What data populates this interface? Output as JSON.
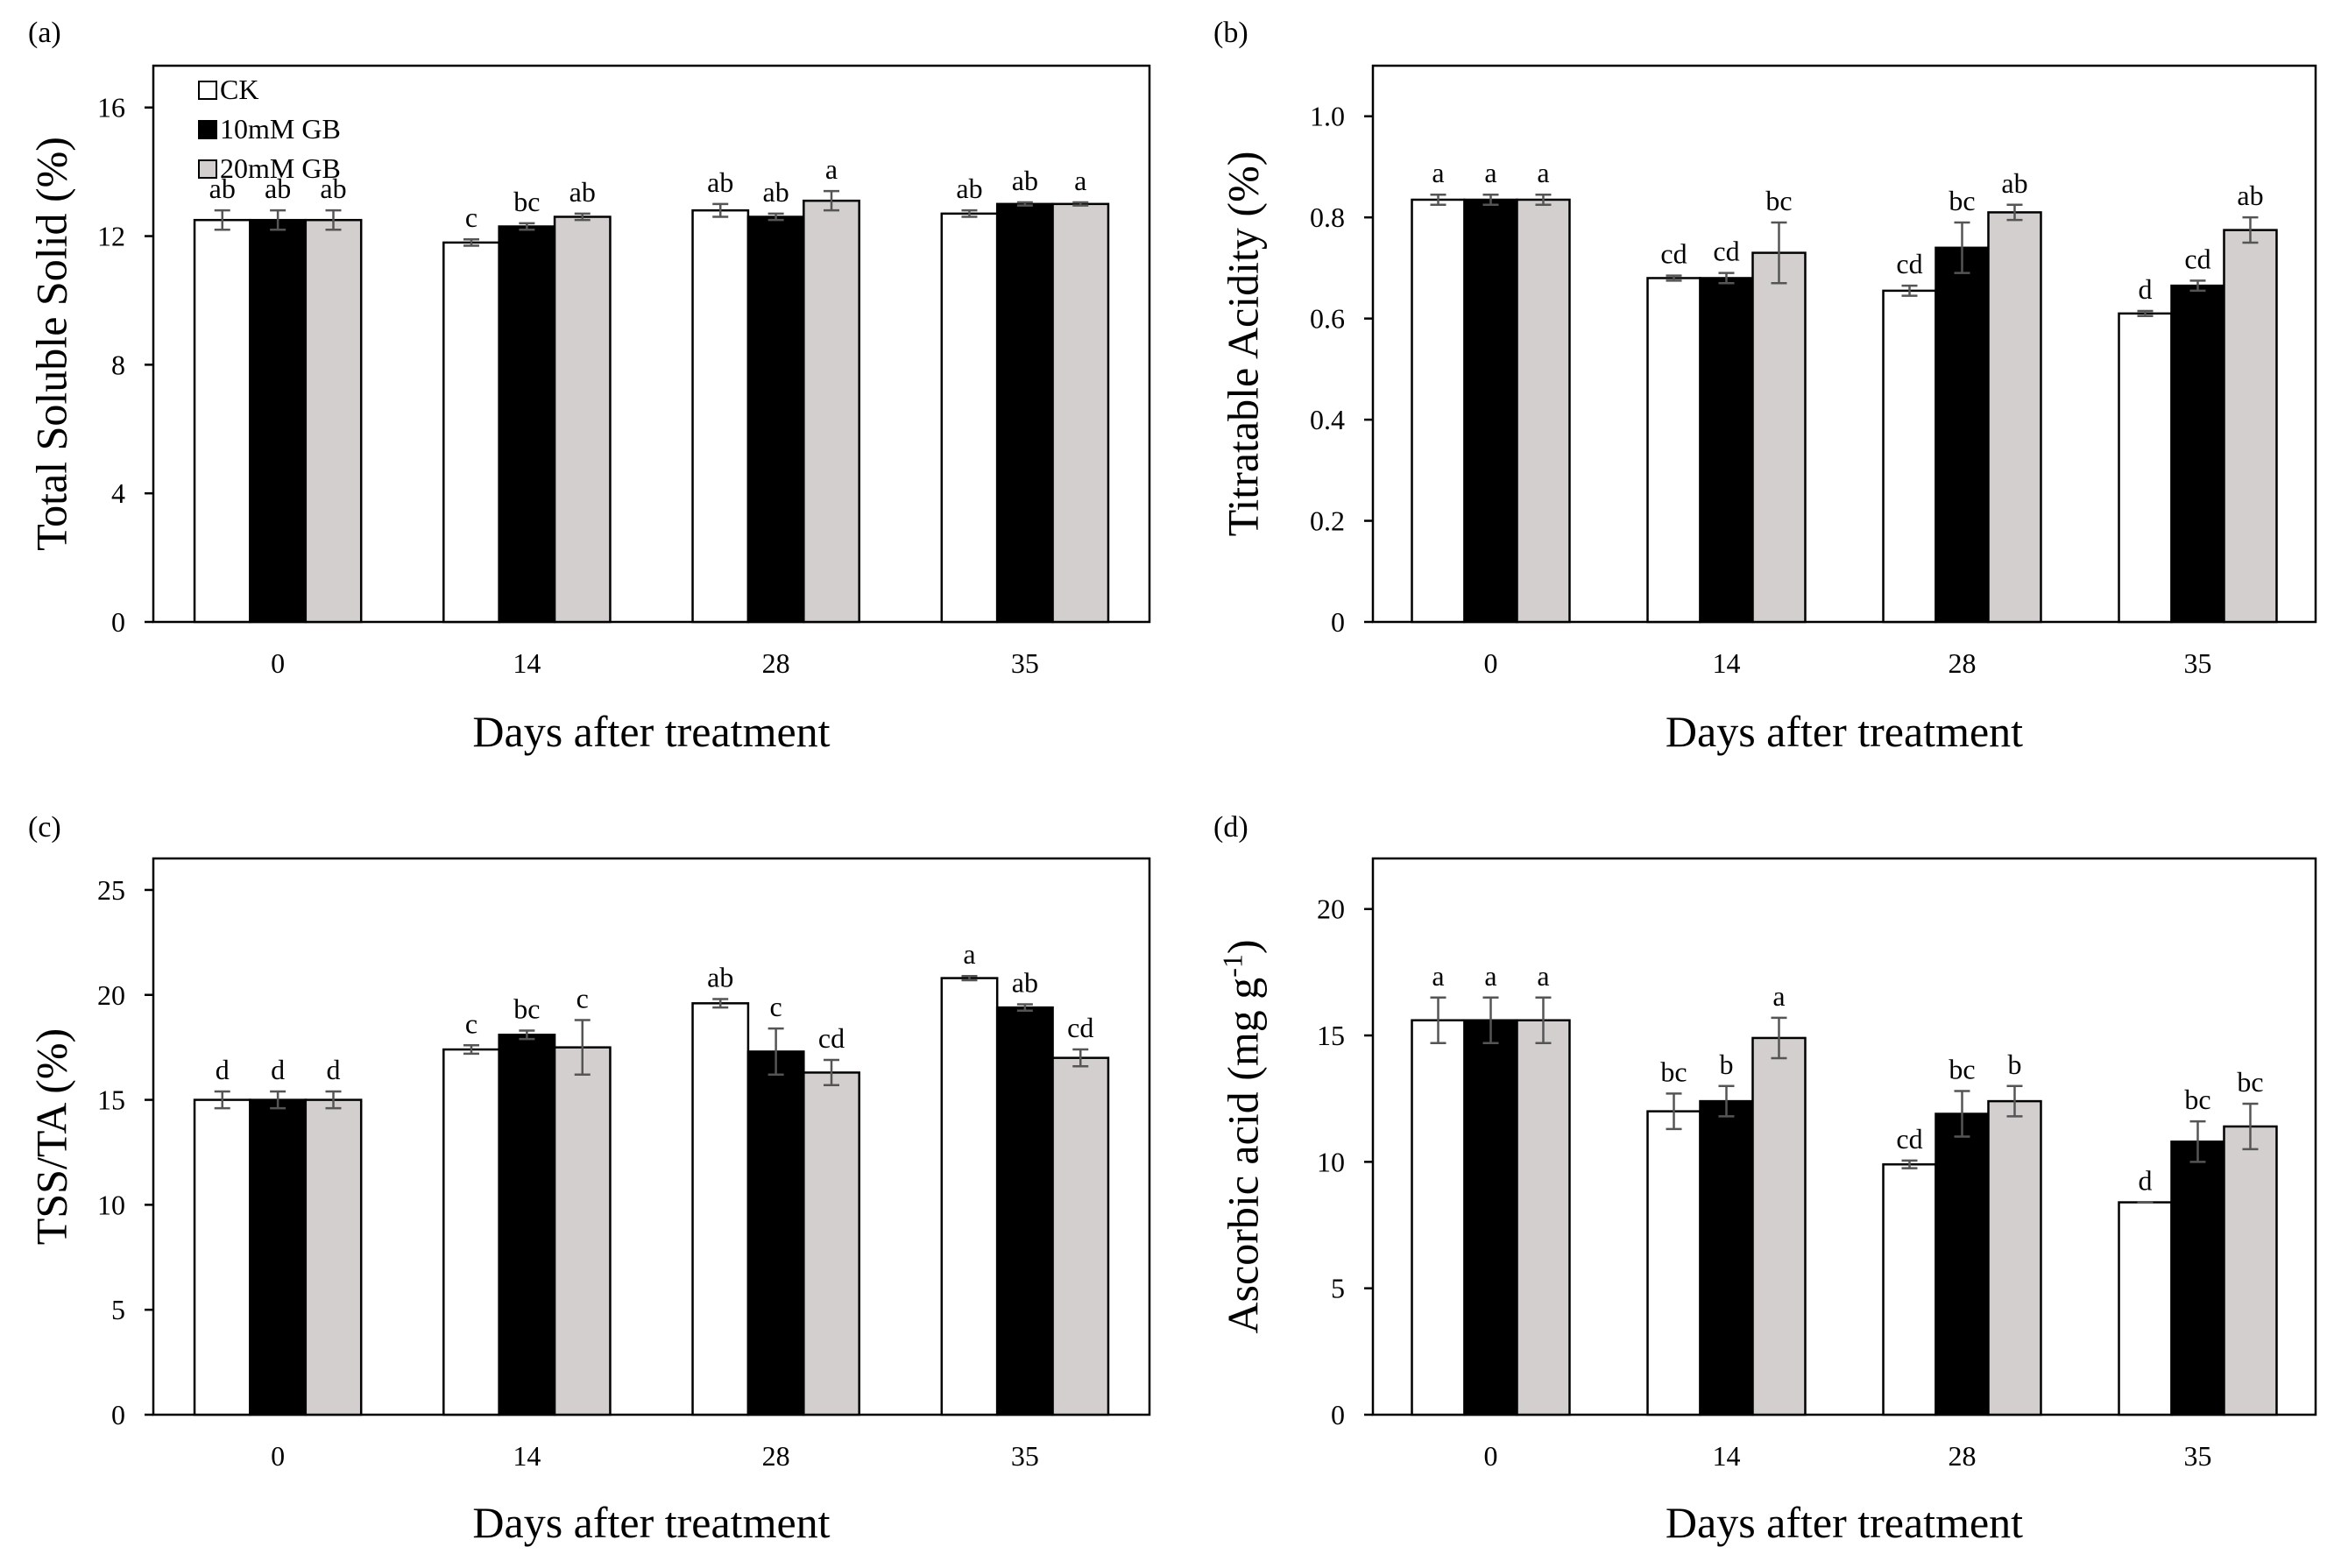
{
  "chart_data": [
    {
      "type": "bar",
      "panel_label": "(a)",
      "xlabel": "Days after treatment",
      "ylabel": "Total Soluble Solid (%)",
      "ylim": [
        0,
        17.3
      ],
      "yticks": [
        "0",
        "4",
        "8",
        "12",
        "16"
      ],
      "categories": [
        "0",
        "14",
        "28",
        "35"
      ],
      "legend": [
        "CK",
        "10mM GB",
        "20mM GB"
      ],
      "legend_position": "top-left",
      "series": [
        {
          "name": "CK",
          "values": [
            12.5,
            11.8,
            12.8,
            12.7
          ],
          "errors": [
            0.3,
            0.1,
            0.2,
            0.1
          ],
          "letters": [
            "ab",
            "c",
            "ab",
            "ab"
          ]
        },
        {
          "name": "10mM GB",
          "values": [
            12.5,
            12.3,
            12.6,
            13.0
          ],
          "errors": [
            0.3,
            0.1,
            0.1,
            0.05
          ],
          "letters": [
            "ab",
            "bc",
            "ab",
            "ab"
          ]
        },
        {
          "name": "20mM GB",
          "values": [
            12.5,
            12.6,
            13.1,
            13.0
          ],
          "errors": [
            0.3,
            0.1,
            0.3,
            0.05
          ],
          "letters": [
            "ab",
            "ab",
            "a",
            "a"
          ]
        }
      ]
    },
    {
      "type": "bar",
      "panel_label": "(b)",
      "xlabel": "Days after treatment",
      "ylabel": "Titratable Acidity (%)",
      "ylim": [
        0,
        1.1
      ],
      "yticks": [
        "0",
        "0.2",
        "0.4",
        "0.6",
        "0.8",
        "1.0"
      ],
      "categories": [
        "0",
        "14",
        "28",
        "35"
      ],
      "series": [
        {
          "name": "CK",
          "values": [
            0.835,
            0.68,
            0.655,
            0.61
          ],
          "errors": [
            0.01,
            0.005,
            0.01,
            0.005
          ],
          "letters": [
            "a",
            "cd",
            "cd",
            "d"
          ]
        },
        {
          "name": "10mM GB",
          "values": [
            0.835,
            0.68,
            0.74,
            0.665
          ],
          "errors": [
            0.01,
            0.01,
            0.05,
            0.01
          ],
          "letters": [
            "a",
            "cd",
            "bc",
            "cd"
          ]
        },
        {
          "name": "20mM GB",
          "values": [
            0.835,
            0.73,
            0.81,
            0.775
          ],
          "errors": [
            0.01,
            0.06,
            0.015,
            0.025
          ],
          "letters": [
            "a",
            "bc",
            "ab",
            "ab"
          ]
        }
      ]
    },
    {
      "type": "bar",
      "panel_label": "(c)",
      "xlabel": "Days after treatment",
      "ylabel": "TSS/TA (%)",
      "ylim": [
        0,
        26.5
      ],
      "yticks": [
        "0",
        "5",
        "10",
        "15",
        "20",
        "25"
      ],
      "categories": [
        "0",
        "14",
        "28",
        "35"
      ],
      "series": [
        {
          "name": "CK",
          "values": [
            15.0,
            17.4,
            19.6,
            20.8
          ],
          "errors": [
            0.4,
            0.2,
            0.2,
            0.1
          ],
          "letters": [
            "d",
            "c",
            "ab",
            "a"
          ]
        },
        {
          "name": "10mM GB",
          "values": [
            15.0,
            18.1,
            17.3,
            19.4
          ],
          "errors": [
            0.4,
            0.2,
            1.1,
            0.15
          ],
          "letters": [
            "d",
            "bc",
            "c",
            "ab"
          ]
        },
        {
          "name": "20mM GB",
          "values": [
            15.0,
            17.5,
            16.3,
            17.0
          ],
          "errors": [
            0.4,
            1.3,
            0.6,
            0.4
          ],
          "letters": [
            "d",
            "c",
            "cd",
            "cd"
          ]
        }
      ]
    },
    {
      "type": "bar",
      "panel_label": "(d)",
      "xlabel": "Days after treatment",
      "ylabel_main": "Ascorbic acid (mg g",
      "ylabel_sup": "-1",
      "ylabel_end": ")",
      "ylim": [
        0,
        22
      ],
      "yticks": [
        "0",
        "5",
        "10",
        "15",
        "20"
      ],
      "categories": [
        "0",
        "14",
        "28",
        "35"
      ],
      "series": [
        {
          "name": "CK",
          "values": [
            15.6,
            12.0,
            9.9,
            8.4
          ],
          "errors": [
            0.9,
            0.7,
            0.15,
            0.0
          ],
          "letters": [
            "a",
            "bc",
            "cd",
            "d"
          ]
        },
        {
          "name": "10mM GB",
          "values": [
            15.6,
            12.4,
            11.9,
            10.8
          ],
          "errors": [
            0.9,
            0.6,
            0.9,
            0.8
          ],
          "letters": [
            "a",
            "b",
            "bc",
            "bc"
          ]
        },
        {
          "name": "20mM GB",
          "values": [
            15.6,
            14.9,
            12.4,
            11.4
          ],
          "errors": [
            0.9,
            0.8,
            0.6,
            0.9
          ],
          "letters": [
            "a",
            "a",
            "b",
            "bc"
          ]
        }
      ]
    }
  ],
  "colors": {
    "CK": "#ffffff",
    "10mM GB": "#000000",
    "20mM GB": "#d4cfcf",
    "error_bar": "#555555"
  }
}
